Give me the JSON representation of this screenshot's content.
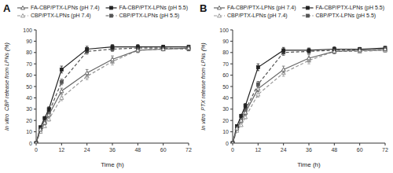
{
  "chart_data": [
    {
      "type": "line",
      "title": "A",
      "x_label": "Time (h)",
      "y_label": "In vitro  CBP release from LPNs (%)",
      "x": [
        0,
        2,
        4,
        6,
        12,
        24,
        36,
        48,
        60,
        72
      ],
      "xlim": [
        0,
        72
      ],
      "ylim": [
        0,
        100
      ],
      "xticks": [
        0,
        12,
        24,
        36,
        48,
        60,
        72
      ],
      "yticks": [
        0,
        10,
        20,
        30,
        40,
        50,
        60,
        70,
        80,
        90,
        100
      ],
      "grid": false,
      "legend": "top",
      "series": [
        {
          "name": "FA-CBP/PTX-LPNs (pH 7.4)",
          "color": "#666666",
          "marker": "triangle",
          "line_style": "solid",
          "values": [
            0,
            12,
            18,
            25,
            46,
            62,
            74,
            82,
            83,
            84
          ],
          "errors": [
            0,
            1.0,
            1.2,
            2.0,
            2.5,
            3.0,
            3.0,
            2.0,
            1.5,
            1.5
          ]
        },
        {
          "name": "FA-CBP/PTX-LPNs (pH 5.5)",
          "color": "#222222",
          "marker": "square",
          "line_style": "solid",
          "values": [
            0,
            14,
            22,
            30,
            65,
            83,
            85,
            85,
            85,
            85
          ],
          "errors": [
            0,
            1.2,
            1.5,
            2.0,
            3.0,
            2.5,
            2.0,
            2.0,
            1.5,
            1.5
          ]
        },
        {
          "name": "CBP/PTX-LPNs (pH 7.4)",
          "color": "#999999",
          "marker": "triangle",
          "line_style": "dashed",
          "values": [
            0,
            10,
            15,
            21,
            40,
            59,
            72,
            82,
            83,
            84
          ],
          "errors": [
            0,
            1.0,
            1.2,
            1.5,
            2.5,
            3.0,
            3.0,
            2.0,
            1.5,
            1.5
          ]
        },
        {
          "name": "CBP/PTX-LPNs (pH 5.5)",
          "color": "#555555",
          "marker": "square",
          "line_style": "dashed",
          "values": [
            0,
            12,
            18,
            27,
            54,
            81,
            83,
            84,
            84,
            83
          ],
          "errors": [
            0,
            1.2,
            1.5,
            2.0,
            2.5,
            2.5,
            2.0,
            2.0,
            1.5,
            1.5
          ]
        }
      ]
    },
    {
      "type": "line",
      "title": "B",
      "x_label": "Time (h)",
      "y_label": "In vitro  PTX release from LPNs (%)",
      "x": [
        0,
        2,
        4,
        6,
        12,
        24,
        36,
        48,
        60,
        72
      ],
      "xlim": [
        0,
        72
      ],
      "ylim": [
        0,
        100
      ],
      "xticks": [
        0,
        12,
        24,
        36,
        48,
        60,
        72
      ],
      "yticks": [
        0,
        10,
        20,
        30,
        40,
        50,
        60,
        70,
        80,
        90,
        100
      ],
      "grid": false,
      "legend": "top",
      "series": [
        {
          "name": "FA-CBP/PTX-LPNs (pH 7.4)",
          "color": "#666666",
          "marker": "triangle",
          "line_style": "solid",
          "values": [
            0,
            13,
            20,
            27,
            48,
            65,
            75,
            81,
            82,
            83
          ],
          "errors": [
            0,
            1.0,
            1.2,
            2.0,
            2.5,
            3.0,
            3.0,
            2.0,
            1.5,
            1.5
          ]
        },
        {
          "name": "FA-CBP/PTX-LPNs (pH 5.5)",
          "color": "#222222",
          "marker": "square",
          "line_style": "solid",
          "values": [
            0,
            15,
            24,
            33,
            67,
            82,
            82,
            83,
            83,
            84
          ],
          "errors": [
            0,
            1.2,
            1.5,
            2.0,
            3.0,
            2.5,
            2.0,
            2.0,
            1.5,
            1.5
          ]
        },
        {
          "name": "CBP/PTX-LPNs (pH 7.4)",
          "color": "#999999",
          "marker": "triangle",
          "line_style": "dashed",
          "values": [
            0,
            11,
            16,
            23,
            43,
            62,
            73,
            81,
            81,
            82
          ],
          "errors": [
            0,
            1.0,
            1.2,
            1.5,
            2.5,
            3.0,
            3.0,
            2.0,
            1.5,
            1.5
          ]
        },
        {
          "name": "CBP/PTX-LPNs (pH 5.5)",
          "color": "#555555",
          "marker": "square",
          "line_style": "dashed",
          "values": [
            0,
            13,
            20,
            29,
            52,
            80,
            81,
            82,
            82,
            82
          ],
          "errors": [
            0,
            1.2,
            1.5,
            2.0,
            2.5,
            2.5,
            2.0,
            2.0,
            1.5,
            1.5
          ]
        }
      ]
    }
  ]
}
